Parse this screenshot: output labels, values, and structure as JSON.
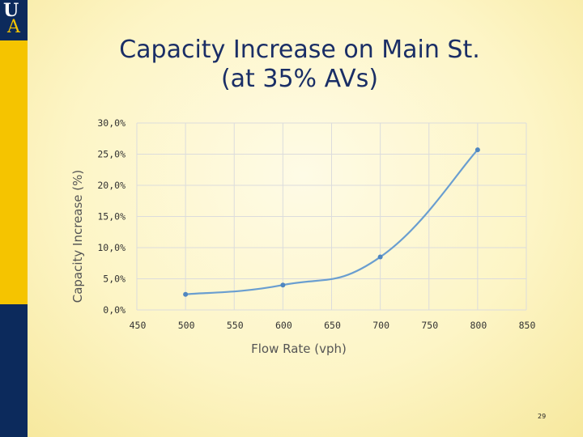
{
  "logo": {
    "letter_top": "U",
    "letter_bottom": "A"
  },
  "title": {
    "line1": "Capacity Increase on Main St.",
    "line2": "(at 35%  AVs)"
  },
  "page_number": "29",
  "colors": {
    "sidebar_gold": "#f5c400",
    "sidebar_navy": "#0c2a5c",
    "title": "#1a2e66",
    "series": "#6a9ed0"
  },
  "chart_data": {
    "type": "scatter",
    "title": "",
    "xlabel": "Flow Rate (vph)",
    "ylabel": "Capacity Increase (%)",
    "xlim": [
      450,
      850
    ],
    "ylim": [
      0,
      30
    ],
    "x_ticks": [
      450,
      500,
      550,
      600,
      650,
      700,
      750,
      800,
      850
    ],
    "y_ticks": [
      0,
      5,
      10,
      15,
      20,
      25,
      30
    ],
    "y_tick_labels": [
      "0,0%",
      "5,0%",
      "10,0%",
      "15,0%",
      "20,0%",
      "25,0%",
      "30,0%"
    ],
    "grid": true,
    "legend": "none",
    "smooth_line": true,
    "series": [
      {
        "x": [
          500,
          600,
          700,
          800
        ],
        "values": [
          2.5,
          4.0,
          8.5,
          25.7
        ]
      }
    ]
  }
}
